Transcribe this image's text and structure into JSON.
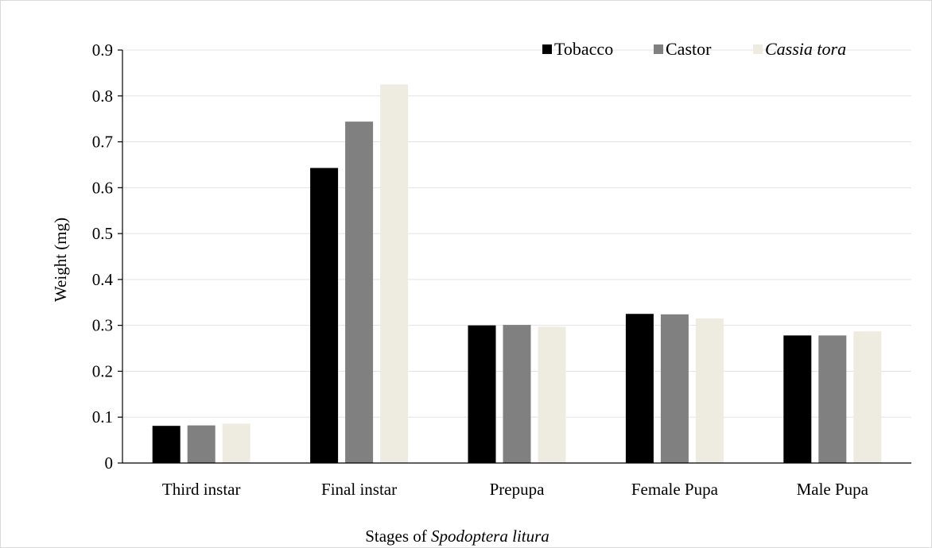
{
  "chart_data": {
    "type": "bar",
    "title": "",
    "xlabel_prefix": "Stages of ",
    "xlabel_italic": "Spodoptera litura",
    "ylabel": "Weight (mg)",
    "ylim": [
      0,
      0.9
    ],
    "yticks": [
      "0",
      "0.1",
      "0.2",
      "0.3",
      "0.4",
      "0.5",
      "0.6",
      "0.7",
      "0.8",
      "0.9"
    ],
    "grid": true,
    "legend_position": "top-right",
    "categories": [
      "Third instar",
      "Final instar",
      "Prepupa",
      "Female Pupa",
      "Male Pupa"
    ],
    "series": [
      {
        "name": "Tobacco",
        "italic": false,
        "color": "#000000",
        "values": [
          0.081,
          0.643,
          0.3,
          0.325,
          0.278
        ]
      },
      {
        "name": "Castor",
        "italic": false,
        "color": "#808080",
        "values": [
          0.082,
          0.744,
          0.301,
          0.324,
          0.278
        ]
      },
      {
        "name": "Cassia tora",
        "italic": true,
        "color": "#eeece1",
        "values": [
          0.086,
          0.825,
          0.297,
          0.315,
          0.287
        ]
      }
    ]
  }
}
